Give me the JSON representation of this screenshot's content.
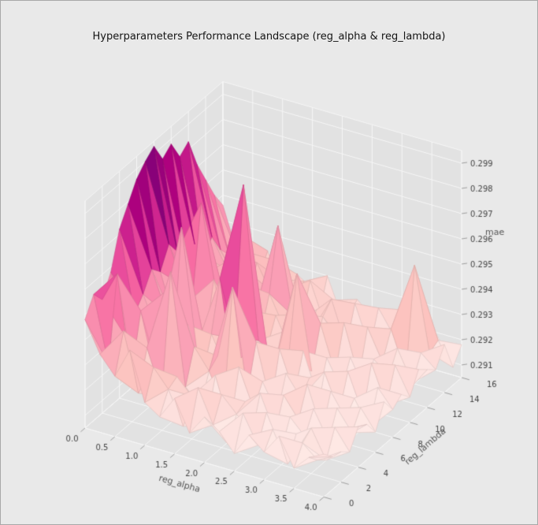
{
  "figure": {
    "background": "#e9e9e9",
    "pane_color": "#e2e2e2",
    "grid_color": "#f7f7f7",
    "tick_color": "#454545",
    "label_color": "#555555",
    "title_color": "#141414",
    "border_color": "#a8a8a8"
  },
  "chart_data": {
    "type": "surface",
    "projection": "3d",
    "view": {
      "elev": 30,
      "azim": -60
    },
    "title": "Hyperparameters Performance Landscape (reg_alpha & reg_lambda)",
    "xlabel": "reg_alpha",
    "ylabel": "reg_lambda",
    "zlabel": "mae",
    "xlim": [
      0,
      4
    ],
    "ylim": [
      0,
      16
    ],
    "zlim": [
      0.2905,
      0.2995
    ],
    "xticks": {
      "values": [
        0,
        0.5,
        1,
        1.5,
        2,
        2.5,
        3,
        3.5,
        4
      ],
      "labels": [
        "0.0",
        "0.5",
        "1.0",
        "1.5",
        "2.0",
        "2.5",
        "3.0",
        "3.5",
        "4.0"
      ]
    },
    "yticks": {
      "values": [
        0,
        2,
        4,
        6,
        8,
        10,
        12,
        14,
        16
      ],
      "labels": [
        "0",
        "2",
        "4",
        "6",
        "8",
        "10",
        "12",
        "14",
        "16"
      ]
    },
    "zticks": {
      "values": [
        0.291,
        0.292,
        0.293,
        0.294,
        0.295,
        0.296,
        0.297,
        0.298,
        0.299
      ],
      "labels": [
        "0.291",
        "0.292",
        "0.293",
        "0.294",
        "0.295",
        "0.296",
        "0.297",
        "0.298",
        "0.299"
      ]
    },
    "colormap": {
      "name": "RdPu",
      "stops": [
        [
          0.0,
          "#fff7f3"
        ],
        [
          0.125,
          "#fde0dd"
        ],
        [
          0.25,
          "#fcc5c0"
        ],
        [
          0.375,
          "#fa9fb5"
        ],
        [
          0.5,
          "#f768a1"
        ],
        [
          0.625,
          "#dd3497"
        ],
        [
          0.75,
          "#ae017e"
        ],
        [
          0.875,
          "#7a0177"
        ],
        [
          1.0,
          "#49006a"
        ]
      ]
    },
    "color_norm": [
      0.2909,
      0.2993
    ],
    "x": [
      0,
      0.25,
      0.5,
      0.75,
      1,
      1.25,
      1.5,
      1.75,
      2,
      2.25,
      2.5,
      2.75,
      3,
      3.25,
      3.5,
      3.75,
      4
    ],
    "y": [
      0,
      1,
      2,
      3,
      4,
      5,
      6,
      7,
      8,
      9,
      10,
      11,
      12,
      13,
      14,
      15,
      16
    ],
    "z": [
      [
        0.2948,
        0.2936,
        0.2929,
        0.2941,
        0.2922,
        0.2918,
        0.2927,
        0.2915,
        0.2923,
        0.2919,
        0.2912,
        0.2921,
        0.2916,
        0.2924,
        0.2913,
        0.2919,
        0.2922
      ],
      [
        0.2955,
        0.2929,
        0.2944,
        0.2921,
        0.2933,
        0.2926,
        0.2913,
        0.293,
        0.2917,
        0.2911,
        0.2925,
        0.2914,
        0.2922,
        0.291,
        0.292,
        0.2915,
        0.2918
      ],
      [
        0.295,
        0.2962,
        0.2925,
        0.2936,
        0.2919,
        0.2928,
        0.2922,
        0.2912,
        0.2926,
        0.292,
        0.2913,
        0.2924,
        0.2911,
        0.2919,
        0.2923,
        0.2912,
        0.2917
      ],
      [
        0.2958,
        0.2934,
        0.2946,
        0.2927,
        0.2965,
        0.2921,
        0.2915,
        0.2929,
        0.291,
        0.2922,
        0.2927,
        0.2913,
        0.2921,
        0.2915,
        0.291,
        0.2922,
        0.2914
      ],
      [
        0.2972,
        0.294,
        0.2928,
        0.2952,
        0.2923,
        0.2934,
        0.2926,
        0.2914,
        0.2931,
        0.2916,
        0.2909,
        0.2925,
        0.2917,
        0.2923,
        0.2912,
        0.2918,
        0.2921
      ],
      [
        0.2979,
        0.2945,
        0.2931,
        0.2924,
        0.2938,
        0.292,
        0.2929,
        0.2958,
        0.2918,
        0.2924,
        0.2913,
        0.292,
        0.2928,
        0.2911,
        0.2922,
        0.2914,
        0.2919
      ],
      [
        0.2986,
        0.2952,
        0.2936,
        0.2972,
        0.2926,
        0.2933,
        0.2921,
        0.2927,
        0.2935,
        0.2912,
        0.2926,
        0.2918,
        0.291,
        0.2924,
        0.2915,
        0.2921,
        0.2913
      ],
      [
        0.299,
        0.2948,
        0.2929,
        0.294,
        0.2924,
        0.2952,
        0.293,
        0.2919,
        0.2925,
        0.2931,
        0.2915,
        0.2923,
        0.2927,
        0.2913,
        0.292,
        0.291,
        0.2922
      ],
      [
        0.2993,
        0.2956,
        0.2941,
        0.293,
        0.2947,
        0.2925,
        0.2988,
        0.2928,
        0.2917,
        0.2923,
        0.2929,
        0.2912,
        0.2921,
        0.2926,
        0.2911,
        0.2923,
        0.2916
      ],
      [
        0.2985,
        0.295,
        0.2933,
        0.2926,
        0.2937,
        0.2929,
        0.2935,
        0.2922,
        0.293,
        0.2955,
        0.2918,
        0.2925,
        0.2914,
        0.292,
        0.2928,
        0.2913,
        0.2919
      ],
      [
        0.2988,
        0.2943,
        0.2968,
        0.2935,
        0.2928,
        0.2941,
        0.2923,
        0.2932,
        0.292,
        0.2927,
        0.2934,
        0.2916,
        0.2924,
        0.2912,
        0.2921,
        0.2926,
        0.2915
      ],
      [
        0.298,
        0.2947,
        0.2938,
        0.2929,
        0.2944,
        0.2926,
        0.2936,
        0.2924,
        0.2931,
        0.2917,
        0.2925,
        0.2933,
        0.2913,
        0.2922,
        0.2917,
        0.2911,
        0.2923
      ],
      [
        0.2983,
        0.2939,
        0.2931,
        0.2942,
        0.2927,
        0.2935,
        0.296,
        0.2926,
        0.2919,
        0.2929,
        0.2922,
        0.2915,
        0.293,
        0.2918,
        0.2925,
        0.2913,
        0.292
      ],
      [
        0.2971,
        0.2944,
        0.2933,
        0.2925,
        0.2939,
        0.2928,
        0.2932,
        0.2921,
        0.2927,
        0.2933,
        0.2916,
        0.2924,
        0.292,
        0.2928,
        0.2912,
        0.2922,
        0.2917
      ],
      [
        0.2962,
        0.2936,
        0.2927,
        0.2938,
        0.2924,
        0.2931,
        0.2925,
        0.2934,
        0.2918,
        0.2926,
        0.293,
        0.2914,
        0.2923,
        0.2917,
        0.2952,
        0.2919,
        0.2924
      ],
      [
        0.2953,
        0.2931,
        0.294,
        0.2926,
        0.2934,
        0.2922,
        0.2929,
        0.2917,
        0.2925,
        0.2921,
        0.2913,
        0.2927,
        0.2918,
        0.2924,
        0.2916,
        0.2921,
        0.2912
      ],
      [
        0.2946,
        0.2928,
        0.2922,
        0.2933,
        0.2919,
        0.2927,
        0.2923,
        0.293,
        0.2915,
        0.2924,
        0.2919,
        0.2912,
        0.2925,
        0.2916,
        0.2922,
        0.2913,
        0.2918
      ]
    ]
  }
}
